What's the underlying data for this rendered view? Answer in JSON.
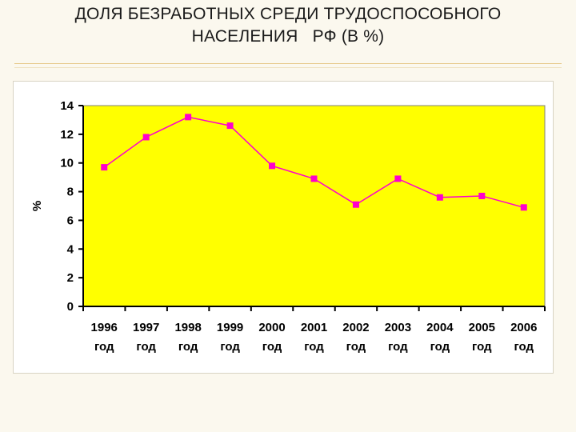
{
  "title": {
    "line1": "ДОЛЯ БЕЗРАБОТНЫХ СРЕДИ ТРУДОСПОСОБНОГО",
    "line2": "НАСЕЛЕНИЯ   РФ (В %)"
  },
  "colors": {
    "plot_background": "#ffff00",
    "series": "#ff00cc",
    "axis": "#000000"
  },
  "chart_data": {
    "type": "line",
    "categories": [
      [
        "1996",
        "год"
      ],
      [
        "1997",
        "год"
      ],
      [
        "1998",
        "год"
      ],
      [
        "1999",
        "год"
      ],
      [
        "2000",
        "год"
      ],
      [
        "2001",
        "год"
      ],
      [
        "2002",
        "год"
      ],
      [
        "2003",
        "год"
      ],
      [
        "2004",
        "год"
      ],
      [
        "2005",
        "год"
      ],
      [
        "2006",
        "год"
      ]
    ],
    "values": [
      9.7,
      11.8,
      13.2,
      12.6,
      9.8,
      8.9,
      7.1,
      8.9,
      7.6,
      7.7,
      6.9
    ],
    "ylabel": "%",
    "ylim": [
      0,
      14
    ],
    "yticks": [
      0,
      2,
      4,
      6,
      8,
      10,
      12,
      14
    ],
    "grid": false,
    "legend": "none"
  }
}
